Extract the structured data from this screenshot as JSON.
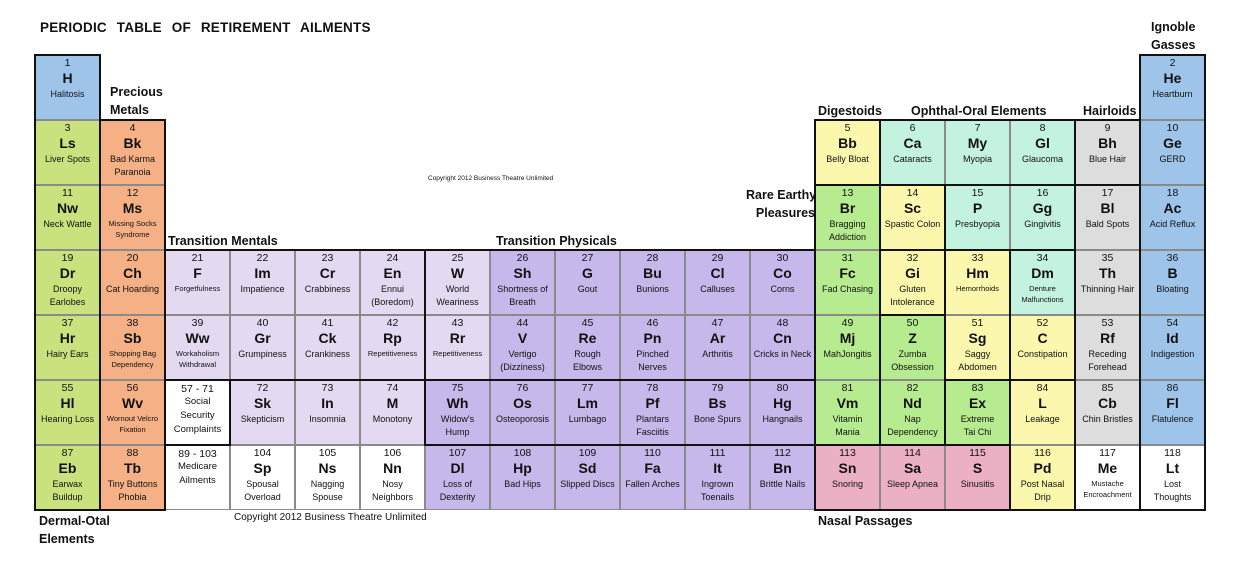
{
  "title": "PERIODIC TABLE OF RETIREMENT AILMENTS",
  "copyright_center": "Copyright 2012 Business Theatre Unlimited",
  "copyright_bottom": "Copyright 2012 Business Theatre Unlimited",
  "groups": {
    "precious_metals": [
      "Precious",
      "Metals"
    ],
    "ignoble_gasses": [
      "Ignoble",
      "Gasses"
    ],
    "digestoids": "Digestoids",
    "ophthal_oral": "Ophthal-Oral Elements",
    "hairloids": "Hairloids",
    "rare_earthy": [
      "Rare Earthy",
      "Pleasures"
    ],
    "transition_mentals": "Transition Mentals",
    "transition_physicals": "Transition Physicals",
    "dermal_otal": [
      "Dermal-Otal",
      "Elements"
    ],
    "nasal_passages": "Nasal Passages"
  },
  "colors": {
    "blue": "#9fc4ea",
    "green": "#c9e27d",
    "orange": "#f5b185",
    "yellow": "#fbf7ad",
    "mint": "#c3f2df",
    "gray": "#dcdddc",
    "lgreen": "#b6eb90",
    "lavender": "#e3daf2",
    "purple": "#c6b8ea",
    "pink": "#ebb0c3",
    "white": "#ffffff"
  },
  "cells": [
    {
      "row": 0,
      "col": 0,
      "num": "1",
      "sym": "H",
      "name": [
        "Halitosis"
      ],
      "color": "blue"
    },
    {
      "row": 0,
      "col": 17,
      "num": "2",
      "sym": "He",
      "name": [
        "Heartburn"
      ],
      "color": "blue"
    },
    {
      "row": 1,
      "col": 0,
      "num": "3",
      "sym": "Ls",
      "name": [
        "Liver Spots"
      ],
      "color": "green"
    },
    {
      "row": 1,
      "col": 1,
      "num": "4",
      "sym": "Bk",
      "name": [
        "Bad Karma",
        "Paranoia"
      ],
      "color": "orange"
    },
    {
      "row": 1,
      "col": 12,
      "num": "5",
      "sym": "Bb",
      "name": [
        "Belly Bloat"
      ],
      "color": "yellow"
    },
    {
      "row": 1,
      "col": 13,
      "num": "6",
      "sym": "Ca",
      "name": [
        "Cataracts"
      ],
      "color": "mint"
    },
    {
      "row": 1,
      "col": 14,
      "num": "7",
      "sym": "My",
      "name": [
        "Myopia"
      ],
      "color": "mint"
    },
    {
      "row": 1,
      "col": 15,
      "num": "8",
      "sym": "Gl",
      "name": [
        "Glaucoma"
      ],
      "color": "mint"
    },
    {
      "row": 1,
      "col": 16,
      "num": "9",
      "sym": "Bh",
      "name": [
        "Blue Hair"
      ],
      "color": "gray"
    },
    {
      "row": 1,
      "col": 17,
      "num": "10",
      "sym": "Ge",
      "name": [
        "GERD"
      ],
      "color": "blue"
    },
    {
      "row": 2,
      "col": 0,
      "num": "11",
      "sym": "Nw",
      "name": [
        "Neck Wattle"
      ],
      "color": "green"
    },
    {
      "row": 2,
      "col": 1,
      "num": "12",
      "sym": "Ms",
      "name": [
        "Missing Socks",
        "Syndrome"
      ],
      "color": "orange",
      "tiny": true
    },
    {
      "row": 2,
      "col": 12,
      "num": "13",
      "sym": "Br",
      "name": [
        "Bragging",
        "Addiction"
      ],
      "color": "lgreen"
    },
    {
      "row": 2,
      "col": 13,
      "num": "14",
      "sym": "Sc",
      "name": [
        "Spastic Colon"
      ],
      "color": "yellow"
    },
    {
      "row": 2,
      "col": 14,
      "num": "15",
      "sym": "P",
      "name": [
        "Presbyopia"
      ],
      "color": "mint"
    },
    {
      "row": 2,
      "col": 15,
      "num": "16",
      "sym": "Gg",
      "name": [
        "Gingivitis"
      ],
      "color": "mint"
    },
    {
      "row": 2,
      "col": 16,
      "num": "17",
      "sym": "Bl",
      "name": [
        "Bald Spots"
      ],
      "color": "gray"
    },
    {
      "row": 2,
      "col": 17,
      "num": "18",
      "sym": "Ac",
      "name": [
        "Acid Reflux"
      ],
      "color": "blue"
    },
    {
      "row": 3,
      "col": 0,
      "num": "19",
      "sym": "Dr",
      "name": [
        "Droopy",
        "Earlobes"
      ],
      "color": "green"
    },
    {
      "row": 3,
      "col": 1,
      "num": "20",
      "sym": "Ch",
      "name": [
        "Cat Hoarding"
      ],
      "color": "orange"
    },
    {
      "row": 3,
      "col": 2,
      "num": "21",
      "sym": "F",
      "name": [
        "Forgetfulness"
      ],
      "color": "lavender",
      "tiny": true
    },
    {
      "row": 3,
      "col": 3,
      "num": "22",
      "sym": "Im",
      "name": [
        "Impatience"
      ],
      "color": "lavender"
    },
    {
      "row": 3,
      "col": 4,
      "num": "23",
      "sym": "Cr",
      "name": [
        "Crabbiness"
      ],
      "color": "lavender"
    },
    {
      "row": 3,
      "col": 5,
      "num": "24",
      "sym": "En",
      "name": [
        "Ennui",
        "(Boredom)"
      ],
      "color": "lavender"
    },
    {
      "row": 3,
      "col": 6,
      "num": "25",
      "sym": "W",
      "name": [
        "World",
        "Weariness"
      ],
      "color": "lavender"
    },
    {
      "row": 3,
      "col": 7,
      "num": "26",
      "sym": "Sh",
      "name": [
        "Shortness of",
        "Breath"
      ],
      "color": "purple"
    },
    {
      "row": 3,
      "col": 8,
      "num": "27",
      "sym": "G",
      "name": [
        "Gout"
      ],
      "color": "purple"
    },
    {
      "row": 3,
      "col": 9,
      "num": "28",
      "sym": "Bu",
      "name": [
        "Bunions"
      ],
      "color": "purple"
    },
    {
      "row": 3,
      "col": 10,
      "num": "29",
      "sym": "Cl",
      "name": [
        "Calluses"
      ],
      "color": "purple"
    },
    {
      "row": 3,
      "col": 11,
      "num": "30",
      "sym": "Co",
      "name": [
        "Corns"
      ],
      "color": "purple"
    },
    {
      "row": 3,
      "col": 12,
      "num": "31",
      "sym": "Fc",
      "name": [
        "Fad Chasing"
      ],
      "color": "lgreen"
    },
    {
      "row": 3,
      "col": 13,
      "num": "32",
      "sym": "Gi",
      "name": [
        "Gluten",
        "Intolerance"
      ],
      "color": "yellow"
    },
    {
      "row": 3,
      "col": 14,
      "num": "33",
      "sym": "Hm",
      "name": [
        "Hemorrhoids"
      ],
      "color": "yellow",
      "tiny": true
    },
    {
      "row": 3,
      "col": 15,
      "num": "34",
      "sym": "Dm",
      "name": [
        "Denture",
        "Malfunctions"
      ],
      "color": "mint",
      "tiny": true
    },
    {
      "row": 3,
      "col": 16,
      "num": "35",
      "sym": "Th",
      "name": [
        "Thinning Hair"
      ],
      "color": "gray"
    },
    {
      "row": 3,
      "col": 17,
      "num": "36",
      "sym": "B",
      "name": [
        "Bloating"
      ],
      "color": "blue"
    },
    {
      "row": 4,
      "col": 0,
      "num": "37",
      "sym": "Hr",
      "name": [
        "Hairy Ears"
      ],
      "color": "green"
    },
    {
      "row": 4,
      "col": 1,
      "num": "38",
      "sym": "Sb",
      "name": [
        "Shopping Bag",
        "Dependency"
      ],
      "color": "orange",
      "tiny": true
    },
    {
      "row": 4,
      "col": 2,
      "num": "39",
      "sym": "Ww",
      "name": [
        "Workaholism",
        "Withdrawal"
      ],
      "color": "lavender",
      "tiny": true
    },
    {
      "row": 4,
      "col": 3,
      "num": "40",
      "sym": "Gr",
      "name": [
        "Grumpiness"
      ],
      "color": "lavender"
    },
    {
      "row": 4,
      "col": 4,
      "num": "41",
      "sym": "Ck",
      "name": [
        "Crankiness"
      ],
      "color": "lavender"
    },
    {
      "row": 4,
      "col": 5,
      "num": "42",
      "sym": "Rp",
      "name": [
        "Repetitiveness"
      ],
      "color": "lavender",
      "tiny": true
    },
    {
      "row": 4,
      "col": 6,
      "num": "43",
      "sym": "Rr",
      "name": [
        "Repetitiveness"
      ],
      "color": "lavender",
      "tiny": true
    },
    {
      "row": 4,
      "col": 7,
      "num": "44",
      "sym": "V",
      "name": [
        "Vertigo",
        "(Dizziness)"
      ],
      "color": "purple"
    },
    {
      "row": 4,
      "col": 8,
      "num": "45",
      "sym": "Re",
      "name": [
        "Rough",
        "Elbows"
      ],
      "color": "purple"
    },
    {
      "row": 4,
      "col": 9,
      "num": "46",
      "sym": "Pn",
      "name": [
        "Pinched",
        "Nerves"
      ],
      "color": "purple"
    },
    {
      "row": 4,
      "col": 10,
      "num": "47",
      "sym": "Ar",
      "name": [
        "Arthritis"
      ],
      "color": "purple"
    },
    {
      "row": 4,
      "col": 11,
      "num": "48",
      "sym": "Cn",
      "name": [
        "Cricks in Neck"
      ],
      "color": "purple"
    },
    {
      "row": 4,
      "col": 12,
      "num": "49",
      "sym": "Mj",
      "name": [
        "MahJongitis"
      ],
      "color": "lgreen"
    },
    {
      "row": 4,
      "col": 13,
      "num": "50",
      "sym": "Z",
      "name": [
        "Zumba",
        "Obsession"
      ],
      "color": "lgreen"
    },
    {
      "row": 4,
      "col": 14,
      "num": "51",
      "sym": "Sg",
      "name": [
        "Saggy",
        "Abdomen"
      ],
      "color": "yellow"
    },
    {
      "row": 4,
      "col": 15,
      "num": "52",
      "sym": "C",
      "name": [
        "Constipation"
      ],
      "color": "yellow"
    },
    {
      "row": 4,
      "col": 16,
      "num": "53",
      "sym": "Rf",
      "name": [
        "Receding",
        "Forehead"
      ],
      "color": "gray"
    },
    {
      "row": 4,
      "col": 17,
      "num": "54",
      "sym": "Id",
      "name": [
        "Indigestion"
      ],
      "color": "blue"
    },
    {
      "row": 5,
      "col": 0,
      "num": "55",
      "sym": "Hl",
      "name": [
        "Hearing Loss"
      ],
      "color": "green"
    },
    {
      "row": 5,
      "col": 1,
      "num": "56",
      "sym": "Wv",
      "name": [
        "Wornout Velcro",
        "Fixation"
      ],
      "color": "orange",
      "tiny": true
    },
    {
      "row": 5,
      "col": 2,
      "num": "57 - 71",
      "sym": "",
      "name": [
        "Social",
        "Security",
        "Complaints"
      ],
      "color": "white",
      "range": true
    },
    {
      "row": 5,
      "col": 3,
      "num": "72",
      "sym": "Sk",
      "name": [
        "Skepticism"
      ],
      "color": "lavender"
    },
    {
      "row": 5,
      "col": 4,
      "num": "73",
      "sym": "In",
      "name": [
        "Insomnia"
      ],
      "color": "lavender"
    },
    {
      "row": 5,
      "col": 5,
      "num": "74",
      "sym": "M",
      "name": [
        "Monotony"
      ],
      "color": "lavender"
    },
    {
      "row": 5,
      "col": 6,
      "num": "75",
      "sym": "Wh",
      "name": [
        "Widow's",
        "Hump"
      ],
      "color": "purple"
    },
    {
      "row": 5,
      "col": 7,
      "num": "76",
      "sym": "Os",
      "name": [
        "Osteoporosis"
      ],
      "color": "purple"
    },
    {
      "row": 5,
      "col": 8,
      "num": "77",
      "sym": "Lm",
      "name": [
        "Lumbago"
      ],
      "color": "purple"
    },
    {
      "row": 5,
      "col": 9,
      "num": "78",
      "sym": "Pf",
      "name": [
        "Plantars",
        "Fasciitis"
      ],
      "color": "purple"
    },
    {
      "row": 5,
      "col": 10,
      "num": "79",
      "sym": "Bs",
      "name": [
        "Bone Spurs"
      ],
      "color": "purple"
    },
    {
      "row": 5,
      "col": 11,
      "num": "80",
      "sym": "Hg",
      "name": [
        "Hangnails"
      ],
      "color": "purple"
    },
    {
      "row": 5,
      "col": 12,
      "num": "81",
      "sym": "Vm",
      "name": [
        "Vitamin",
        "Mania"
      ],
      "color": "lgreen"
    },
    {
      "row": 5,
      "col": 13,
      "num": "82",
      "sym": "Nd",
      "name": [
        "Nap",
        "Dependency"
      ],
      "color": "lgreen"
    },
    {
      "row": 5,
      "col": 14,
      "num": "83",
      "sym": "Ex",
      "name": [
        "Extreme",
        "Tai Chi"
      ],
      "color": "lgreen"
    },
    {
      "row": 5,
      "col": 15,
      "num": "84",
      "sym": "L",
      "name": [
        "Leakage"
      ],
      "color": "yellow"
    },
    {
      "row": 5,
      "col": 16,
      "num": "85",
      "sym": "Cb",
      "name": [
        "Chin Bristles"
      ],
      "color": "gray"
    },
    {
      "row": 5,
      "col": 17,
      "num": "86",
      "sym": "Fl",
      "name": [
        "Flatulence"
      ],
      "color": "blue"
    },
    {
      "row": 6,
      "col": 0,
      "num": "87",
      "sym": "Eb",
      "name": [
        "Earwax",
        "Buildup"
      ],
      "color": "green"
    },
    {
      "row": 6,
      "col": 1,
      "num": "88",
      "sym": "Tb",
      "name": [
        "Tiny Buttons",
        "Phobia"
      ],
      "color": "orange"
    },
    {
      "row": 6,
      "col": 2,
      "num": "89 - 103",
      "sym": "",
      "name": [
        "Medicare",
        "Ailments"
      ],
      "color": "white",
      "range": true
    },
    {
      "row": 6,
      "col": 3,
      "num": "104",
      "sym": "Sp",
      "name": [
        "Spousal",
        "Overload"
      ],
      "color": "white"
    },
    {
      "row": 6,
      "col": 4,
      "num": "105",
      "sym": "Ns",
      "name": [
        "Nagging",
        "Spouse"
      ],
      "color": "white"
    },
    {
      "row": 6,
      "col": 5,
      "num": "106",
      "sym": "Nn",
      "name": [
        "Nosy",
        "Neighbors"
      ],
      "color": "white"
    },
    {
      "row": 6,
      "col": 6,
      "num": "107",
      "sym": "Dl",
      "name": [
        "Loss of",
        "Dexterity"
      ],
      "color": "purple"
    },
    {
      "row": 6,
      "col": 7,
      "num": "108",
      "sym": "Hp",
      "name": [
        "Bad Hips"
      ],
      "color": "purple"
    },
    {
      "row": 6,
      "col": 8,
      "num": "109",
      "sym": "Sd",
      "name": [
        "Slipped Discs"
      ],
      "color": "purple"
    },
    {
      "row": 6,
      "col": 9,
      "num": "110",
      "sym": "Fa",
      "name": [
        "Fallen Arches"
      ],
      "color": "purple"
    },
    {
      "row": 6,
      "col": 10,
      "num": "111",
      "sym": "It",
      "name": [
        "Ingrown",
        "Toenails"
      ],
      "color": "purple"
    },
    {
      "row": 6,
      "col": 11,
      "num": "112",
      "sym": "Bn",
      "name": [
        "Brittle Nails"
      ],
      "color": "purple"
    },
    {
      "row": 6,
      "col": 12,
      "num": "113",
      "sym": "Sn",
      "name": [
        "Snoring"
      ],
      "color": "pink"
    },
    {
      "row": 6,
      "col": 13,
      "num": "114",
      "sym": "Sa",
      "name": [
        "Sleep Apnea"
      ],
      "color": "pink"
    },
    {
      "row": 6,
      "col": 14,
      "num": "115",
      "sym": "S",
      "name": [
        "Sinusitis"
      ],
      "color": "pink"
    },
    {
      "row": 6,
      "col": 15,
      "num": "116",
      "sym": "Pd",
      "name": [
        "Post Nasal",
        "Drip"
      ],
      "color": "yellow"
    },
    {
      "row": 6,
      "col": 16,
      "num": "117",
      "sym": "Me",
      "name": [
        "Mustache",
        "Encroachment"
      ],
      "color": "white",
      "tiny": true
    },
    {
      "row": 6,
      "col": 17,
      "num": "118",
      "sym": "Lt",
      "name": [
        "Lost",
        "Thoughts"
      ],
      "color": "white"
    }
  ]
}
